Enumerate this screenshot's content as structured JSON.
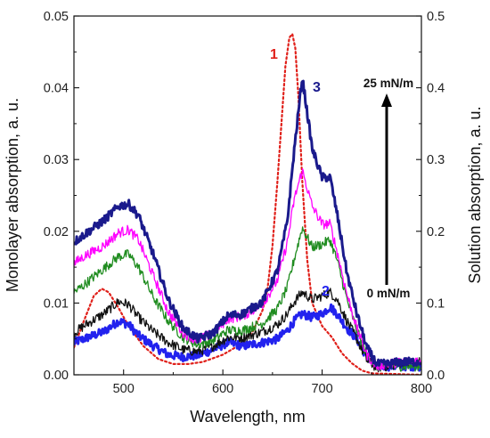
{
  "chart_data": {
    "type": "line",
    "xlabel": "Wavelength, nm",
    "ylabel": "Monolayer absorption, a. u.",
    "y2label": "Solution absorption, a. u.",
    "xlim": [
      450,
      800
    ],
    "ylim": [
      0,
      0.05
    ],
    "y2lim": [
      0,
      0.5
    ],
    "x_ticks": [
      "500",
      "600",
      "700",
      "800"
    ],
    "x_tick_values": [
      500,
      600,
      700,
      800
    ],
    "y_ticks": [
      "0.00",
      "0.01",
      "0.02",
      "0.03",
      "0.04",
      "0.05"
    ],
    "y_tick_values": [
      0,
      0.01,
      0.02,
      0.03,
      0.04,
      0.05
    ],
    "y2_ticks": [
      "0.0",
      "0.1",
      "0.2",
      "0.3",
      "0.4",
      "0.5"
    ],
    "y2_tick_values": [
      0,
      0.1,
      0.2,
      0.3,
      0.4,
      0.5
    ],
    "grid": false,
    "annotations": {
      "curve1": "1",
      "curve2": "2",
      "curve3": "3",
      "pressure_top": "25 mN/m",
      "pressure_bottom": "0 mN/m"
    },
    "colors": {
      "curve1": "#e0201a",
      "curve2": "#2222ee",
      "curve3": "#1a1a8c",
      "magenta": "#ff00ff",
      "green": "#1f8c1f",
      "black": "#111111"
    },
    "series": [
      {
        "key": "solution",
        "color": "#e0201a",
        "dashed": true,
        "width": 2.2,
        "axis": "right",
        "x": [
          450,
          460,
          470,
          478,
          485,
          495,
          505,
          520,
          535,
          550,
          565,
          580,
          600,
          615,
          630,
          640,
          645,
          650,
          655,
          660,
          663,
          667,
          670,
          673,
          676,
          680,
          685,
          690,
          700,
          710,
          720,
          730,
          740,
          750,
          800
        ],
        "y": [
          0.038,
          0.075,
          0.11,
          0.12,
          0.115,
          0.093,
          0.068,
          0.04,
          0.022,
          0.015,
          0.015,
          0.018,
          0.028,
          0.04,
          0.06,
          0.09,
          0.12,
          0.18,
          0.27,
          0.37,
          0.43,
          0.47,
          0.475,
          0.455,
          0.39,
          0.27,
          0.16,
          0.1,
          0.068,
          0.052,
          0.03,
          0.016,
          0.006,
          0.002,
          0.0
        ]
      },
      {
        "key": "0 mN/m (blue)",
        "color": "#2222ee",
        "width": 3.0,
        "axis": "left",
        "noise": 0.0006,
        "x": [
          450,
          460,
          480,
          495,
          505,
          515,
          530,
          545,
          560,
          575,
          590,
          605,
          620,
          640,
          655,
          665,
          672,
          680,
          690,
          700,
          708,
          715,
          725,
          735,
          745,
          755,
          765,
          780,
          800
        ],
        "y": [
          0.0045,
          0.005,
          0.006,
          0.0075,
          0.007,
          0.0055,
          0.004,
          0.0028,
          0.0025,
          0.0027,
          0.0035,
          0.0045,
          0.004,
          0.0045,
          0.005,
          0.0062,
          0.0075,
          0.0085,
          0.008,
          0.0085,
          0.0095,
          0.0085,
          0.0065,
          0.005,
          0.0025,
          0.0012,
          0.0012,
          0.0012,
          0.0012
        ]
      },
      {
        "key": "black",
        "color": "#111111",
        "width": 1.3,
        "axis": "left",
        "noise": 0.0007,
        "x": [
          450,
          460,
          480,
          495,
          505,
          515,
          530,
          545,
          560,
          575,
          590,
          605,
          620,
          640,
          655,
          665,
          672,
          680,
          690,
          700,
          708,
          715,
          725,
          735,
          745,
          755,
          765,
          780,
          800
        ],
        "y": [
          0.0058,
          0.0068,
          0.0085,
          0.0102,
          0.0098,
          0.008,
          0.006,
          0.0045,
          0.0035,
          0.0032,
          0.004,
          0.0052,
          0.0052,
          0.006,
          0.007,
          0.0085,
          0.0102,
          0.0115,
          0.0105,
          0.011,
          0.0115,
          0.0105,
          0.0075,
          0.005,
          0.002,
          0.001,
          0.0012,
          0.0015,
          0.0018
        ]
      },
      {
        "key": "green",
        "color": "#1f8c1f",
        "width": 1.3,
        "axis": "left",
        "noise": 0.0007,
        "x": [
          450,
          460,
          480,
          495,
          505,
          515,
          530,
          545,
          560,
          575,
          590,
          605,
          620,
          640,
          655,
          665,
          672,
          680,
          690,
          700,
          708,
          715,
          725,
          735,
          745,
          755,
          765,
          780,
          800
        ],
        "y": [
          0.0115,
          0.0125,
          0.0148,
          0.0165,
          0.0168,
          0.015,
          0.0108,
          0.0075,
          0.0052,
          0.0042,
          0.0048,
          0.0062,
          0.0062,
          0.0072,
          0.0092,
          0.0122,
          0.0162,
          0.0205,
          0.0178,
          0.0182,
          0.0188,
          0.016,
          0.0105,
          0.0062,
          0.0028,
          0.0012,
          0.0012,
          0.0012,
          0.0012
        ]
      },
      {
        "key": "magenta",
        "color": "#ff00ff",
        "width": 1.3,
        "axis": "left",
        "noise": 0.0007,
        "x": [
          450,
          460,
          480,
          495,
          505,
          515,
          530,
          545,
          560,
          575,
          590,
          605,
          620,
          640,
          655,
          665,
          672,
          680,
          690,
          700,
          708,
          715,
          725,
          735,
          745,
          755,
          765,
          780,
          800
        ],
        "y": [
          0.0155,
          0.0165,
          0.018,
          0.0198,
          0.0202,
          0.0188,
          0.0138,
          0.0088,
          0.0058,
          0.0048,
          0.0058,
          0.0078,
          0.0082,
          0.0098,
          0.0132,
          0.0185,
          0.0245,
          0.0285,
          0.0235,
          0.021,
          0.021,
          0.0172,
          0.0112,
          0.0065,
          0.0028,
          0.0012,
          0.0015,
          0.0018,
          0.002
        ]
      },
      {
        "key": "25 mN/m (navy)",
        "color": "#1a1a8c",
        "width": 3.0,
        "axis": "left",
        "noise": 0.0006,
        "x": [
          450,
          460,
          480,
          495,
          505,
          515,
          530,
          545,
          560,
          575,
          590,
          605,
          620,
          640,
          655,
          665,
          672,
          680,
          690,
          700,
          708,
          715,
          725,
          735,
          745,
          755,
          765,
          780,
          800
        ],
        "y": [
          0.0185,
          0.0195,
          0.0215,
          0.0235,
          0.0238,
          0.0222,
          0.0168,
          0.0105,
          0.0065,
          0.005,
          0.0058,
          0.0082,
          0.0085,
          0.0102,
          0.0145,
          0.0215,
          0.0315,
          0.0415,
          0.0315,
          0.0275,
          0.0275,
          0.0225,
          0.0142,
          0.0085,
          0.0038,
          0.0015,
          0.0015,
          0.0018,
          0.0018
        ]
      }
    ]
  }
}
